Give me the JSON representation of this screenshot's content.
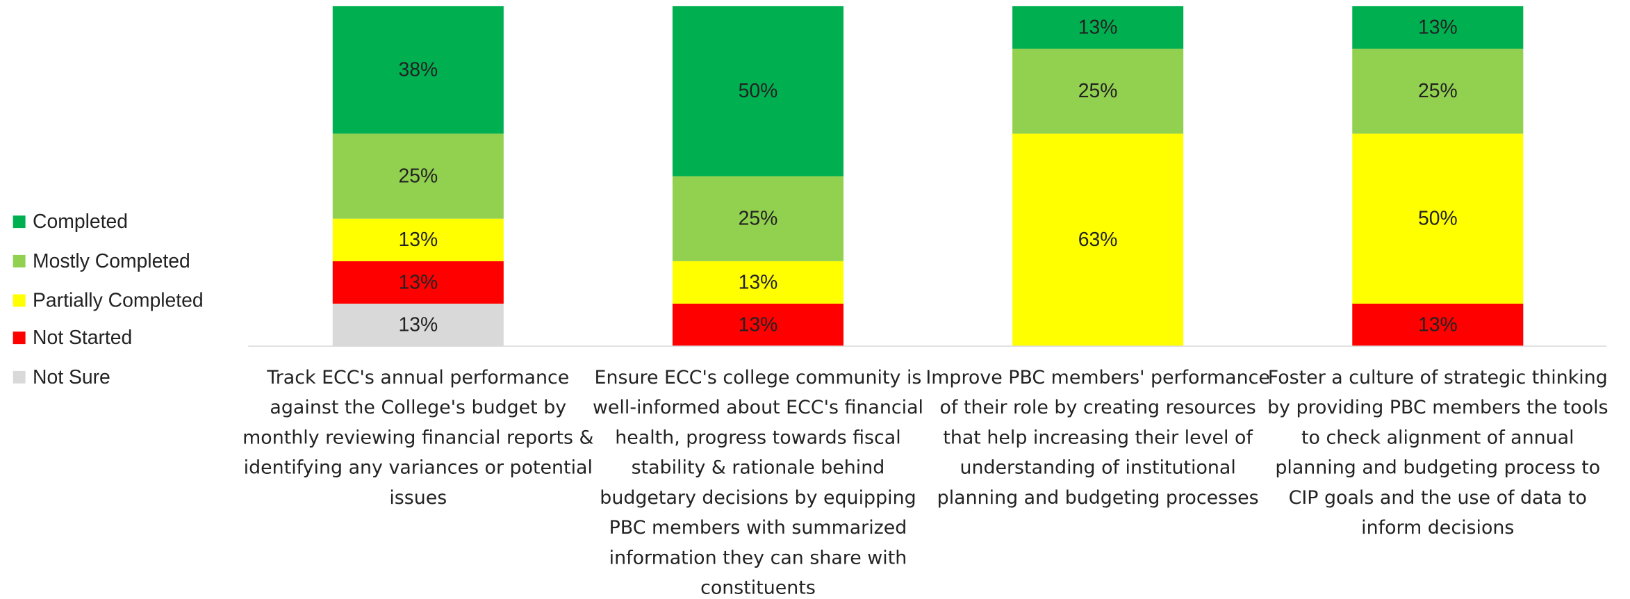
{
  "chart_data": {
    "type": "stacked_bar",
    "categories": [
      "Track ECC's annual performance against the College's budget by monthly reviewing financial reports & identifying any variances or potential issues",
      "Ensure ECC's college community is well-informed about ECC's financial health, progress towards fiscal stability & rationale behind budgetary decisions by equipping PBC members with summarized information they can share with constituents",
      "Improve PBC members' performance of their role by creating resources that help increasing their level of understanding of institutional planning and budgeting processes",
      "Foster a culture of strategic thinking by providing PBC members the tools to check alignment of annual planning and budgeting process to CIP goals and the use of data to inform decisions"
    ],
    "series": [
      {
        "name": "Completed",
        "color": "#00b050",
        "values": [
          37.5,
          50,
          12.5,
          12.5
        ],
        "value_labels": [
          "38%",
          "50%",
          "13%",
          "13%"
        ]
      },
      {
        "name": "Mostly Completed",
        "color": "#92d050",
        "values": [
          25,
          25,
          25,
          25
        ],
        "value_labels": [
          "25%",
          "25%",
          "25%",
          "25%"
        ]
      },
      {
        "name": "Partially Completed",
        "color": "#ffff00",
        "values": [
          12.5,
          12.5,
          62.5,
          50
        ],
        "value_labels": [
          "13%",
          "13%",
          "63%",
          "50%"
        ]
      },
      {
        "name": "Not Started",
        "color": "#ff0000",
        "values": [
          12.5,
          12.5,
          null,
          12.5
        ],
        "value_labels": [
          "13%",
          "13%",
          null,
          "13%"
        ]
      },
      {
        "name": "Not Sure",
        "color": "#d9d9d9",
        "values": [
          12.5,
          null,
          null,
          null
        ],
        "value_labels": [
          "13%",
          null,
          null,
          null
        ]
      }
    ],
    "ylim": [
      0,
      100
    ],
    "legend": "left"
  }
}
